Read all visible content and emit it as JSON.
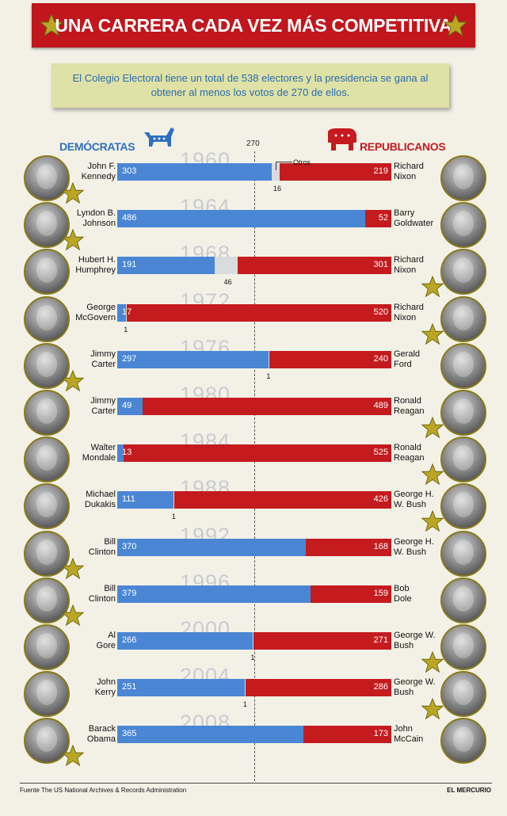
{
  "title": "UNA CARRERA CADA VEZ MÁS COMPETITIVA",
  "intro": "El Colegio Electoral tiene un total de 538 electores y la presidencia se gana al obtener al menos los votos de 270 de ellos.",
  "party_dem": "DEMÓCRATAS",
  "party_rep": "REPUBLICANOS",
  "threshold_label": "270",
  "otros_label": "Otros",
  "source": "Fuente The US National Archives & Records Administration",
  "brand": "EL MERCURIO",
  "colors": {
    "dem": "#4a86d4",
    "rep": "#c41b1f",
    "other": "#d9dbdc",
    "banner": "#c0161c",
    "star": "#b9a625"
  },
  "chart_data": {
    "type": "bar",
    "title": "UNA CARRERA CADA VEZ MÁS COMPETITIVA",
    "total": 538,
    "threshold": 270,
    "series": [
      {
        "name": "DEMÓCRATAS",
        "values": [
          303,
          486,
          191,
          17,
          297,
          49,
          13,
          111,
          370,
          379,
          266,
          251,
          365
        ]
      },
      {
        "name": "Otros",
        "values": [
          16,
          0,
          46,
          1,
          1,
          0,
          0,
          1,
          0,
          0,
          1,
          1,
          0
        ]
      },
      {
        "name": "REPUBLICANOS",
        "values": [
          219,
          52,
          301,
          520,
          240,
          489,
          525,
          426,
          168,
          159,
          271,
          286,
          173
        ]
      }
    ],
    "rows": [
      {
        "year": "1960",
        "dem_name": [
          "John F.",
          "Kennedy"
        ],
        "rep_name": [
          "Richard",
          "Nixon"
        ],
        "dem": 303,
        "other": 16,
        "rep": 219,
        "winner": "dem",
        "show_other": "16",
        "otros_label": true
      },
      {
        "year": "1964",
        "dem_name": [
          "Lyndon B.",
          "Johnson"
        ],
        "rep_name": [
          "Barry",
          "Goldwater"
        ],
        "dem": 486,
        "other": 0,
        "rep": 52,
        "winner": "dem",
        "show_other": ""
      },
      {
        "year": "1968",
        "dem_name": [
          "Hubert H.",
          "Humphrey"
        ],
        "rep_name": [
          "Richard",
          "Nixon"
        ],
        "dem": 191,
        "other": 46,
        "rep": 301,
        "winner": "rep",
        "show_other": "46"
      },
      {
        "year": "1972",
        "dem_name": [
          "George",
          "McGovern"
        ],
        "rep_name": [
          "Richard",
          "Nixon"
        ],
        "dem": 17,
        "other": 1,
        "rep": 520,
        "winner": "rep",
        "show_other": "1"
      },
      {
        "year": "1976",
        "dem_name": [
          "Jimmy",
          "Carter"
        ],
        "rep_name": [
          "Gerald",
          "Ford"
        ],
        "dem": 297,
        "other": 1,
        "rep": 240,
        "winner": "dem",
        "show_other": "1"
      },
      {
        "year": "1980",
        "dem_name": [
          "Jimmy",
          "Carter"
        ],
        "rep_name": [
          "Ronald",
          "Reagan"
        ],
        "dem": 49,
        "other": 0,
        "rep": 489,
        "winner": "rep",
        "show_other": ""
      },
      {
        "year": "1984",
        "dem_name": [
          "Walter",
          "Mondale"
        ],
        "rep_name": [
          "Ronald",
          "Reagan"
        ],
        "dem": 13,
        "other": 0,
        "rep": 525,
        "winner": "rep",
        "show_other": ""
      },
      {
        "year": "1988",
        "dem_name": [
          "Michael",
          "Dukakis"
        ],
        "rep_name": [
          "George H.",
          "W. Bush"
        ],
        "dem": 111,
        "other": 1,
        "rep": 426,
        "winner": "rep",
        "show_other": "1"
      },
      {
        "year": "1992",
        "dem_name": [
          "Bill",
          "Clinton"
        ],
        "rep_name": [
          "George H.",
          "W. Bush"
        ],
        "dem": 370,
        "other": 0,
        "rep": 168,
        "winner": "dem",
        "show_other": ""
      },
      {
        "year": "1996",
        "dem_name": [
          "Bill",
          "Clinton"
        ],
        "rep_name": [
          "Bob",
          "Dole"
        ],
        "dem": 379,
        "other": 0,
        "rep": 159,
        "winner": "dem",
        "show_other": ""
      },
      {
        "year": "2000",
        "dem_name": [
          "Al",
          "Gore"
        ],
        "rep_name": [
          "George W.",
          "Bush"
        ],
        "dem": 266,
        "other": 1,
        "rep": 271,
        "winner": "rep",
        "show_other": "1"
      },
      {
        "year": "2004",
        "dem_name": [
          "John",
          "Kerry"
        ],
        "rep_name": [
          "George W.",
          "Bush"
        ],
        "dem": 251,
        "other": 1,
        "rep": 286,
        "winner": "rep",
        "show_other": "1"
      },
      {
        "year": "2008",
        "dem_name": [
          "Barack",
          "Obama"
        ],
        "rep_name": [
          "John",
          "McCain"
        ],
        "dem": 365,
        "other": 0,
        "rep": 173,
        "winner": "dem",
        "show_other": ""
      }
    ]
  }
}
